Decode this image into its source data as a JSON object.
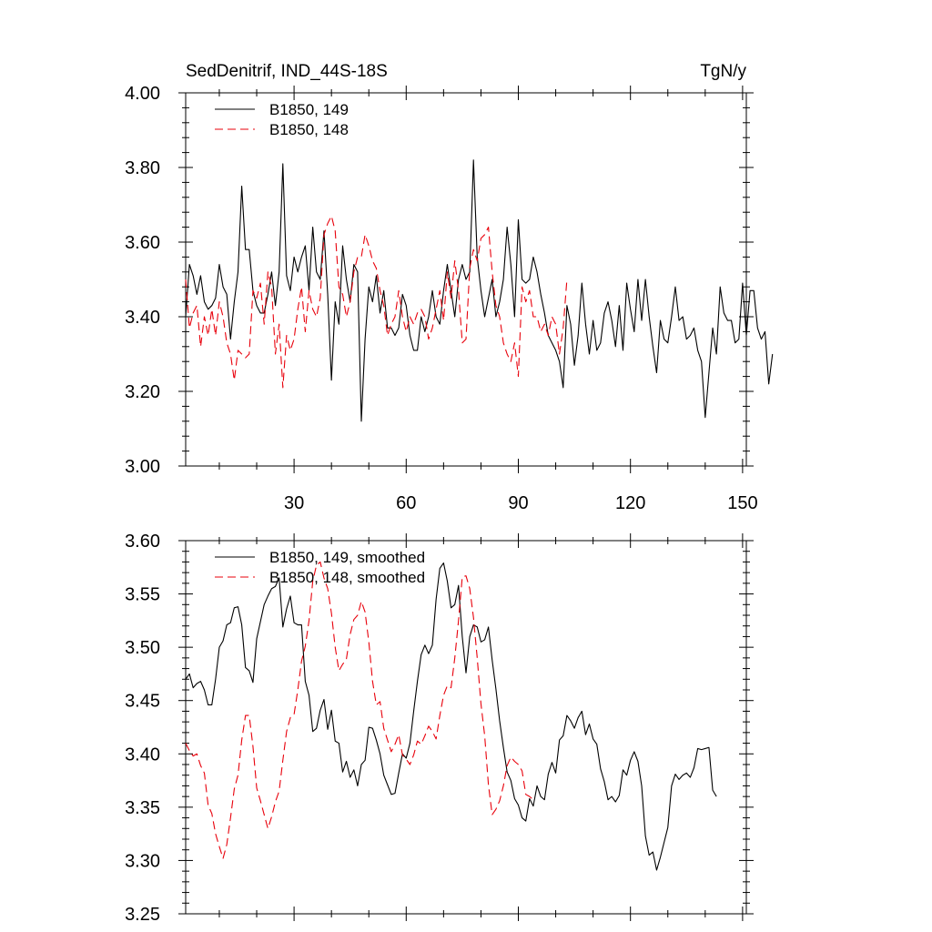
{
  "chart_data": [
    {
      "type": "line",
      "title": "SedDenitrif, IND_44S-18S",
      "units": "TgN/y",
      "xlim": [
        1,
        151
      ],
      "ylim": [
        3.0,
        4.0
      ],
      "xticks": [
        30,
        60,
        90,
        120,
        150
      ],
      "xtick_labels": [
        "30",
        "60",
        "90",
        "120",
        "150"
      ],
      "yticks": [
        3.0,
        3.2,
        3.4,
        3.6,
        3.8,
        4.0
      ],
      "ytick_labels": [
        "3.00",
        "3.20",
        "3.40",
        "3.60",
        "3.80",
        "4.00"
      ],
      "legend_position": "top-left",
      "series": [
        {
          "name": "B1850, 149",
          "color": "#000000",
          "dash": "solid",
          "x_start": 1,
          "values": [
            3.4,
            3.54,
            3.51,
            3.46,
            3.51,
            3.44,
            3.42,
            3.43,
            3.45,
            3.54,
            3.48,
            3.46,
            3.34,
            3.44,
            3.52,
            3.75,
            3.58,
            3.58,
            3.47,
            3.43,
            3.41,
            3.41,
            3.46,
            3.52,
            3.43,
            3.52,
            3.81,
            3.51,
            3.47,
            3.56,
            3.52,
            3.56,
            3.59,
            3.47,
            3.64,
            3.52,
            3.5,
            3.63,
            3.46,
            3.23,
            3.44,
            3.38,
            3.59,
            3.5,
            3.44,
            3.54,
            3.52,
            3.12,
            3.34,
            3.48,
            3.44,
            3.51,
            3.41,
            3.47,
            3.37,
            3.37,
            3.35,
            3.37,
            3.46,
            3.43,
            3.35,
            3.31,
            3.31,
            3.4,
            3.36,
            3.4,
            3.47,
            3.4,
            3.38,
            3.47,
            3.54,
            3.47,
            3.4,
            3.5,
            3.54,
            3.5,
            3.52,
            3.82,
            3.56,
            3.47,
            3.4,
            3.45,
            3.5,
            3.4,
            3.44,
            3.5,
            3.64,
            3.54,
            3.4,
            3.66,
            3.5,
            3.49,
            3.5,
            3.56,
            3.52,
            3.46,
            3.41,
            3.35,
            3.33,
            3.31,
            3.28,
            3.21,
            3.43,
            3.38,
            3.27,
            3.35,
            3.49,
            3.38,
            3.3,
            3.39,
            3.31,
            3.33,
            3.41,
            3.44,
            3.39,
            3.32,
            3.43,
            3.31,
            3.49,
            3.42,
            3.36,
            3.5,
            3.39,
            3.5,
            3.4,
            3.32,
            3.25,
            3.39,
            3.34,
            3.33,
            3.4,
            3.48,
            3.39,
            3.4,
            3.34,
            3.35,
            3.37,
            3.31,
            3.28,
            3.13,
            3.25,
            3.37,
            3.3,
            3.48,
            3.41,
            3.39,
            3.39,
            3.33,
            3.34,
            3.49,
            3.35,
            3.47,
            3.47,
            3.37,
            3.34,
            3.36,
            3.22,
            3.3
          ]
        },
        {
          "name": "B1850, 148",
          "color": "#e8000b",
          "dash": "dashed",
          "x_start": 1,
          "values": [
            3.5,
            3.37,
            3.41,
            3.43,
            3.32,
            3.4,
            3.35,
            3.42,
            3.35,
            3.44,
            3.4,
            3.33,
            3.3,
            3.23,
            3.31,
            3.3,
            3.29,
            3.3,
            3.47,
            3.45,
            3.49,
            3.38,
            3.52,
            3.48,
            3.3,
            3.38,
            3.21,
            3.35,
            3.31,
            3.34,
            3.42,
            3.48,
            3.36,
            3.47,
            3.42,
            3.4,
            3.45,
            3.62,
            3.65,
            3.67,
            3.63,
            3.48,
            3.46,
            3.4,
            3.44,
            3.52,
            3.56,
            3.56,
            3.62,
            3.59,
            3.55,
            3.53,
            3.47,
            3.43,
            3.35,
            3.38,
            3.4,
            3.47,
            3.4,
            3.36,
            3.4,
            3.38,
            3.41,
            3.42,
            3.4,
            3.34,
            3.37,
            3.42,
            3.47,
            3.39,
            3.52,
            3.45,
            3.55,
            3.47,
            3.33,
            3.34,
            3.53,
            3.58,
            3.55,
            3.61,
            3.62,
            3.64,
            3.52,
            3.43,
            3.4,
            3.33,
            3.3,
            3.28,
            3.33,
            3.24,
            3.48,
            3.44,
            3.47,
            3.4,
            3.4,
            3.36,
            3.38,
            3.35,
            3.4,
            3.38,
            3.3,
            3.37,
            3.5
          ]
        }
      ]
    },
    {
      "type": "line",
      "xlim": [
        1,
        151
      ],
      "ylim": [
        3.25,
        3.6
      ],
      "xticks": [
        30,
        60,
        90,
        120,
        150
      ],
      "yticks": [
        3.25,
        3.3,
        3.35,
        3.4,
        3.45,
        3.5,
        3.55,
        3.6
      ],
      "ytick_labels": [
        "3.25",
        "3.30",
        "3.35",
        "3.40",
        "3.45",
        "3.50",
        "3.55",
        "3.60"
      ],
      "legend_position": "top-left",
      "series": [
        {
          "name": "B1850, 149, smoothed",
          "color": "#000000",
          "dash": "solid",
          "x_start": 1,
          "values": [
            3.47,
            3.475,
            3.462,
            3.466,
            3.468,
            3.46,
            3.446,
            3.446,
            3.47,
            3.5,
            3.506,
            3.521,
            3.523,
            3.537,
            3.538,
            3.521,
            3.481,
            3.478,
            3.467,
            3.508,
            3.524,
            3.54,
            3.548,
            3.555,
            3.557,
            3.565,
            3.519,
            3.536,
            3.548,
            3.523,
            3.521,
            3.521,
            3.468,
            3.455,
            3.421,
            3.424,
            3.441,
            3.451,
            3.423,
            3.441,
            3.412,
            3.41,
            3.383,
            3.393,
            3.378,
            3.385,
            3.37,
            3.39,
            3.394,
            3.425,
            3.424,
            3.413,
            3.4,
            3.38,
            3.371,
            3.362,
            3.363,
            3.382,
            3.4,
            3.396,
            3.41,
            3.44,
            3.468,
            3.493,
            3.502,
            3.494,
            3.502,
            3.545,
            3.574,
            3.579,
            3.562,
            3.537,
            3.54,
            3.558,
            3.51,
            3.476,
            3.51,
            3.521,
            3.519,
            3.505,
            3.507,
            3.519,
            3.488,
            3.461,
            3.431,
            3.406,
            3.383,
            3.375,
            3.358,
            3.352,
            3.34,
            3.337,
            3.358,
            3.351,
            3.37,
            3.36,
            3.357,
            3.381,
            3.392,
            3.382,
            3.413,
            3.417,
            3.436,
            3.431,
            3.424,
            3.434,
            3.44,
            3.418,
            3.428,
            3.414,
            3.409,
            3.386,
            3.374,
            3.357,
            3.36,
            3.355,
            3.361,
            3.385,
            3.38,
            3.394,
            3.402,
            3.393,
            3.37,
            3.323,
            3.305,
            3.308,
            3.291,
            3.303,
            3.317,
            3.331,
            3.37,
            3.381,
            3.376,
            3.38,
            3.382,
            3.378,
            3.387,
            3.405,
            3.404,
            3.405,
            3.406,
            3.366,
            3.36
          ]
        },
        {
          "name": "B1850, 148, smoothed",
          "color": "#e8000b",
          "dash": "dashed",
          "x_start": 1,
          "values": [
            3.41,
            3.403,
            3.398,
            3.4,
            3.389,
            3.382,
            3.352,
            3.344,
            3.325,
            3.313,
            3.302,
            3.315,
            3.34,
            3.367,
            3.38,
            3.413,
            3.436,
            3.436,
            3.407,
            3.368,
            3.356,
            3.343,
            3.33,
            3.341,
            3.355,
            3.365,
            3.394,
            3.421,
            3.434,
            3.437,
            3.46,
            3.487,
            3.501,
            3.525,
            3.562,
            3.577,
            3.58,
            3.565,
            3.555,
            3.532,
            3.5,
            3.478,
            3.484,
            3.489,
            3.512,
            3.526,
            3.53,
            3.543,
            3.533,
            3.505,
            3.468,
            3.446,
            3.449,
            3.424,
            3.413,
            3.402,
            3.409,
            3.418,
            3.399,
            3.395,
            3.39,
            3.399,
            3.412,
            3.409,
            3.417,
            3.426,
            3.421,
            3.414,
            3.436,
            3.455,
            3.464,
            3.462,
            3.49,
            3.525,
            3.566,
            3.567,
            3.555,
            3.528,
            3.49,
            3.447,
            3.417,
            3.371,
            3.343,
            3.348,
            3.356,
            3.37,
            3.389,
            3.397,
            3.393,
            3.39,
            3.384,
            3.362,
            3.36,
            3.357
          ]
        }
      ]
    }
  ]
}
